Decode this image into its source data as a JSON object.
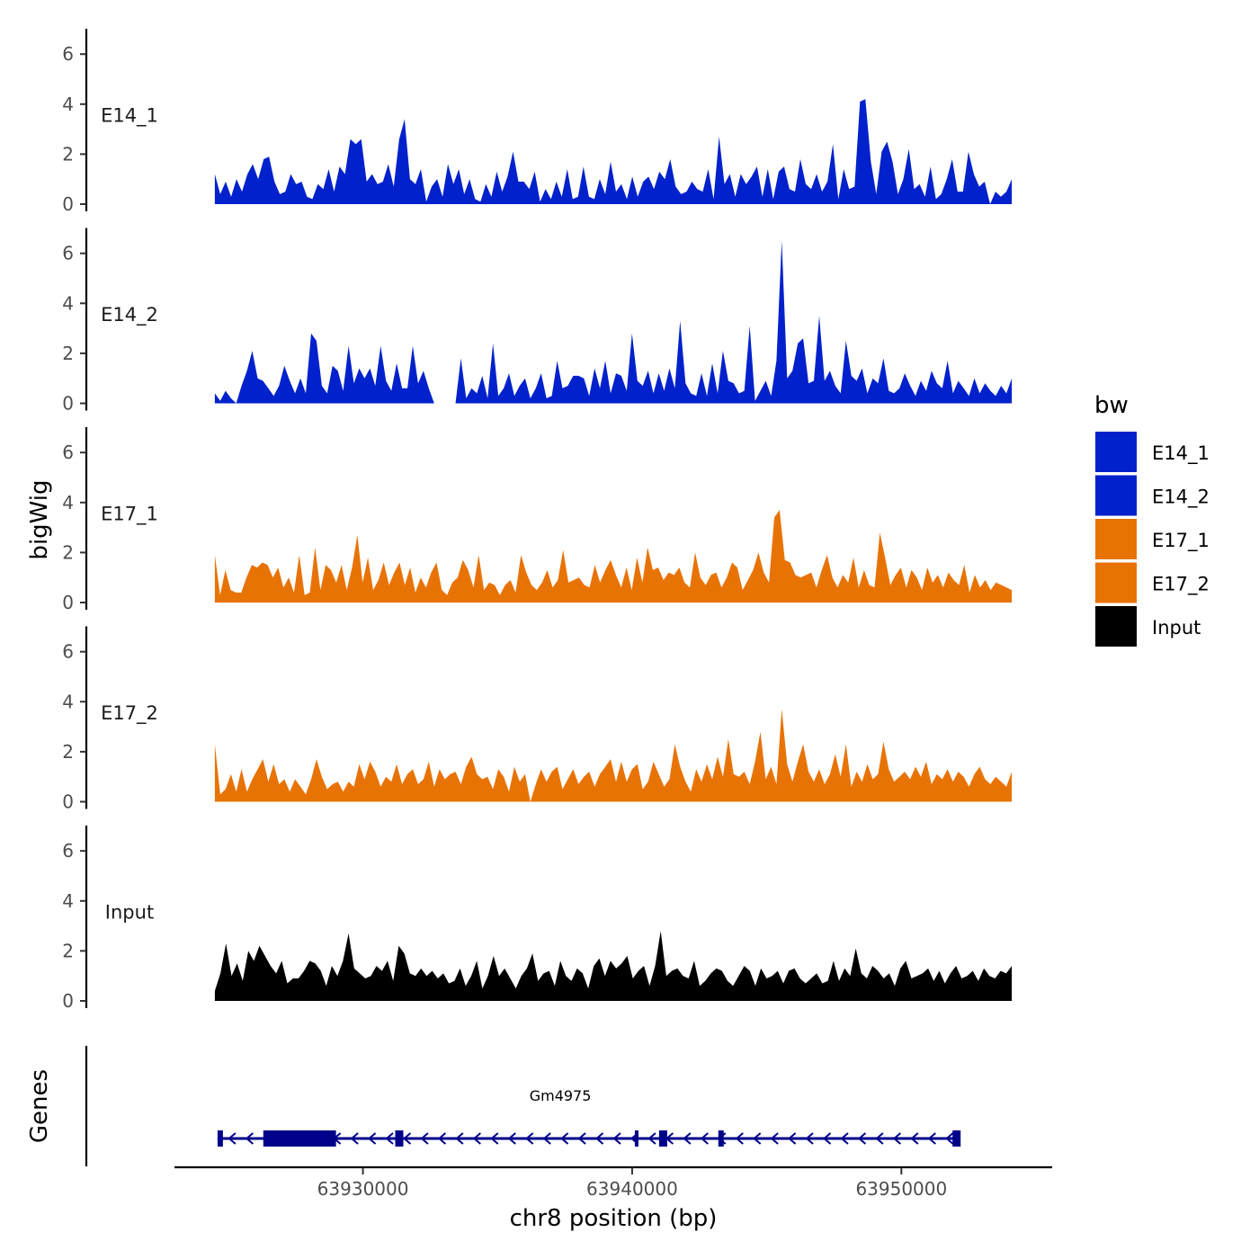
{
  "chart_data": {
    "type": "area",
    "title": "",
    "xlabel": "chr8 position (bp)",
    "ylabel": "bigWig",
    "genes_label": "Genes",
    "xlim": [
      63923000,
      63955600
    ],
    "ylim": [
      0,
      7
    ],
    "x_ticks": [
      63930000,
      63940000,
      63950000
    ],
    "x_tick_labels": [
      "63930000",
      "63940000",
      "63950000"
    ],
    "y_ticks": [
      0,
      2,
      4,
      6
    ],
    "y_tick_labels": [
      "0",
      "2",
      "4",
      "6"
    ],
    "region": [
      63924500,
      63954100
    ],
    "legend": {
      "title": "bw",
      "position": "right",
      "entries": [
        {
          "name": "E14_1",
          "color": "#0021CC"
        },
        {
          "name": "E14_2",
          "color": "#0021CC"
        },
        {
          "name": "E17_1",
          "color": "#E87305"
        },
        {
          "name": "E17_2",
          "color": "#E87305"
        },
        {
          "name": "Input",
          "color": "#000000"
        }
      ]
    },
    "series": [
      {
        "name": "E14_1",
        "color": "#0021CC",
        "values": [
          1.2,
          0.4,
          0.9,
          0.3,
          1.0,
          0.5,
          1.2,
          1.6,
          1.0,
          1.8,
          1.9,
          0.9,
          0.4,
          0.5,
          1.2,
          0.8,
          0.9,
          0.3,
          0.2,
          0.8,
          0.6,
          1.4,
          0.5,
          1.5,
          1.2,
          2.6,
          2.4,
          2.6,
          0.9,
          1.2,
          0.8,
          0.9,
          1.6,
          0.7,
          2.6,
          3.4,
          1.0,
          0.8,
          1.4,
          0.1,
          0.7,
          1.0,
          0.3,
          1.6,
          0.8,
          1.4,
          0.4,
          1.0,
          0.2,
          0.1,
          0.8,
          0.3,
          1.3,
          0.5,
          1.1,
          2.1,
          0.9,
          0.9,
          0.6,
          1.3,
          0.1,
          0.6,
          0.2,
          0.9,
          0.3,
          1.4,
          0.2,
          0.3,
          1.5,
          0.3,
          0.2,
          1.0,
          0.4,
          1.7,
          0.5,
          0.8,
          0.2,
          1.1,
          0.3,
          0.9,
          1.1,
          0.6,
          1.3,
          1.0,
          1.8,
          0.7,
          0.4,
          0.5,
          0.9,
          0.6,
          0.5,
          1.4,
          0.2,
          2.7,
          0.8,
          1.2,
          0.3,
          1.2,
          0.8,
          1.1,
          1.5,
          0.3,
          1.4,
          0.2,
          1.3,
          1.5,
          0.6,
          0.5,
          1.8,
          0.8,
          0.6,
          1.2,
          0.5,
          0.9,
          2.4,
          0.2,
          1.4,
          0.6,
          0.7,
          4.1,
          4.2,
          1.7,
          0.4,
          2.1,
          2.5,
          1.7,
          0.4,
          1.0,
          2.2,
          0.6,
          0.8,
          0.3,
          1.5,
          0.2,
          0.4,
          1.0,
          1.8,
          0.5,
          0.5,
          2.1,
          1.2,
          0.7,
          0.9,
          0.0,
          0.5,
          0.3,
          0.5,
          1.0
        ]
      },
      {
        "name": "E14_2",
        "color": "#0021CC",
        "values": [
          0.4,
          0.1,
          0.5,
          0.2,
          0.0,
          0.7,
          1.3,
          2.1,
          1.0,
          0.9,
          0.6,
          0.3,
          0.7,
          1.5,
          0.9,
          0.4,
          1.0,
          0.4,
          2.8,
          2.5,
          0.7,
          0.4,
          1.5,
          1.3,
          0.5,
          2.3,
          0.8,
          1.4,
          1.0,
          1.4,
          0.7,
          2.3,
          0.9,
          0.5,
          1.6,
          0.6,
          0.6,
          2.3,
          0.8,
          1.3,
          0.6,
          0.0,
          0.0,
          0.0,
          0.0,
          0.0,
          1.8,
          0.2,
          0.6,
          0.4,
          1.1,
          0.2,
          2.4,
          0.3,
          0.6,
          1.2,
          0.3,
          0.7,
          1.0,
          0.2,
          0.6,
          1.2,
          0.2,
          0.3,
          1.7,
          0.6,
          0.7,
          1.1,
          1.1,
          1.0,
          0.3,
          1.4,
          0.6,
          1.7,
          0.4,
          1.2,
          1.1,
          0.5,
          2.8,
          0.9,
          0.7,
          1.3,
          0.4,
          1.2,
          0.5,
          1.4,
          0.6,
          3.3,
          0.8,
          0.4,
          0.3,
          1.2,
          0.3,
          1.6,
          0.4,
          2.1,
          0.9,
          0.8,
          0.4,
          0.5,
          3.1,
          0.1,
          0.5,
          0.9,
          0.3,
          1.7,
          6.5,
          1.0,
          1.3,
          2.4,
          2.6,
          0.8,
          0.9,
          3.5,
          0.9,
          1.3,
          0.7,
          0.4,
          2.5,
          1.1,
          0.9,
          1.4,
          0.4,
          1.0,
          0.8,
          1.8,
          0.5,
          0.4,
          0.6,
          1.2,
          0.7,
          0.3,
          0.9,
          0.5,
          1.3,
          0.8,
          0.6,
          1.7,
          0.4,
          0.9,
          0.6,
          0.3,
          1.0,
          0.4,
          0.8,
          0.5,
          0.3,
          0.7,
          0.4,
          1.0
        ]
      },
      {
        "name": "E17_1",
        "color": "#E87305",
        "values": [
          1.9,
          0.3,
          1.3,
          0.5,
          0.4,
          0.4,
          1.0,
          1.5,
          1.4,
          1.6,
          1.5,
          1.0,
          1.4,
          0.6,
          1.0,
          0.4,
          1.9,
          0.3,
          0.4,
          2.2,
          0.5,
          1.5,
          1.3,
          0.8,
          1.5,
          0.5,
          1.4,
          2.7,
          0.8,
          1.8,
          0.5,
          0.9,
          1.6,
          0.7,
          1.2,
          1.6,
          0.7,
          1.4,
          0.4,
          1.0,
          0.6,
          1.2,
          1.6,
          0.5,
          0.3,
          0.8,
          1.0,
          1.7,
          1.3,
          0.6,
          1.9,
          0.5,
          0.8,
          0.7,
          0.3,
          0.7,
          0.9,
          0.4,
          1.9,
          1.2,
          0.7,
          0.5,
          0.8,
          1.3,
          0.6,
          0.9,
          2.1,
          0.8,
          0.9,
          1.0,
          0.7,
          0.6,
          1.5,
          0.8,
          1.3,
          1.7,
          1.1,
          0.6,
          1.4,
          0.5,
          1.8,
          0.8,
          2.2,
          1.3,
          1.4,
          0.9,
          1.2,
          1.1,
          1.4,
          0.8,
          0.6,
          2.0,
          1.0,
          0.7,
          1.1,
          1.2,
          0.6,
          1.0,
          1.6,
          1.4,
          0.5,
          0.9,
          1.3,
          2.0,
          1.2,
          0.8,
          3.4,
          3.7,
          1.7,
          1.6,
          1.1,
          1.0,
          1.1,
          1.2,
          0.6,
          1.3,
          1.9,
          1.0,
          0.6,
          1.1,
          0.8,
          1.8,
          0.6,
          1.3,
          0.7,
          0.6,
          2.8,
          1.8,
          0.7,
          1.1,
          1.4,
          0.6,
          1.3,
          1.0,
          0.5,
          1.4,
          0.8,
          1.1,
          0.6,
          1.2,
          0.9,
          0.7,
          1.5,
          0.4,
          1.1,
          0.6,
          0.9,
          0.5,
          0.8,
          0.7,
          0.6,
          0.5
        ]
      },
      {
        "name": "E17_2",
        "color": "#E87305",
        "values": [
          2.3,
          0.3,
          0.5,
          1.1,
          0.4,
          1.3,
          0.4,
          0.9,
          1.3,
          1.7,
          0.8,
          1.5,
          0.7,
          0.9,
          0.4,
          0.9,
          0.6,
          0.3,
          0.9,
          1.7,
          1.0,
          0.5,
          0.7,
          0.8,
          0.4,
          0.8,
          0.6,
          1.5,
          0.9,
          1.6,
          1.2,
          0.6,
          1.0,
          0.8,
          1.5,
          0.7,
          1.1,
          1.3,
          0.7,
          0.9,
          1.6,
          0.6,
          1.3,
          0.9,
          1.1,
          1.2,
          0.7,
          1.4,
          1.8,
          1.1,
          0.9,
          1.0,
          0.5,
          1.3,
          1.0,
          0.4,
          1.4,
          0.8,
          1.1,
          0.0,
          0.7,
          1.3,
          0.8,
          1.2,
          1.4,
          0.5,
          0.9,
          1.3,
          0.7,
          1.0,
          1.2,
          0.6,
          1.1,
          1.4,
          1.7,
          0.8,
          1.6,
          0.8,
          1.3,
          1.5,
          0.5,
          0.8,
          1.6,
          1.1,
          0.6,
          0.9,
          2.3,
          1.4,
          0.8,
          0.4,
          1.3,
          0.8,
          1.5,
          0.9,
          1.8,
          1.0,
          2.5,
          1.1,
          1.0,
          1.2,
          0.7,
          1.6,
          2.8,
          0.9,
          1.4,
          0.7,
          3.7,
          1.5,
          0.8,
          1.6,
          2.3,
          1.2,
          0.8,
          1.3,
          0.7,
          1.1,
          1.9,
          1.0,
          2.3,
          0.6,
          1.2,
          0.8,
          1.5,
          0.9,
          1.1,
          2.4,
          1.3,
          0.8,
          1.0,
          1.2,
          0.9,
          1.4,
          1.0,
          1.6,
          0.7,
          1.1,
          0.9,
          1.3,
          0.8,
          1.2,
          1.0,
          0.6,
          1.1,
          1.4,
          0.9,
          0.7,
          1.0,
          0.8,
          0.6,
          1.2
        ]
      },
      {
        "name": "Input",
        "color": "#000000",
        "values": [
          0.4,
          1.1,
          2.3,
          1.0,
          1.5,
          0.8,
          2.0,
          1.6,
          2.2,
          1.8,
          1.4,
          1.1,
          1.6,
          0.7,
          0.9,
          0.9,
          1.2,
          1.6,
          1.5,
          1.2,
          0.6,
          1.4,
          1.0,
          1.6,
          2.7,
          1.3,
          1.1,
          0.9,
          1.0,
          1.4,
          1.2,
          1.6,
          0.8,
          2.2,
          1.9,
          1.1,
          1.0,
          1.3,
          1.0,
          1.2,
          0.9,
          1.1,
          0.7,
          0.8,
          1.3,
          0.6,
          1.0,
          1.6,
          0.5,
          1.0,
          1.8,
          1.0,
          1.3,
          0.9,
          0.5,
          1.0,
          1.3,
          1.9,
          0.8,
          1.1,
          1.2,
          0.6,
          1.6,
          1.0,
          0.8,
          1.3,
          1.1,
          0.5,
          1.4,
          1.7,
          1.0,
          1.6,
          1.3,
          1.5,
          1.8,
          0.9,
          1.2,
          1.4,
          0.6,
          1.4,
          2.8,
          1.0,
          1.2,
          1.3,
          1.0,
          0.9,
          1.6,
          0.6,
          0.8,
          1.1,
          1.3,
          1.2,
          0.8,
          0.6,
          1.0,
          1.4,
          1.2,
          0.6,
          1.3,
          0.9,
          1.0,
          1.2,
          0.7,
          1.2,
          1.3,
          0.9,
          0.7,
          0.9,
          1.1,
          0.7,
          0.8,
          1.6,
          0.8,
          1.3,
          1.0,
          2.1,
          1.1,
          0.9,
          1.4,
          1.2,
          0.9,
          1.1,
          0.6,
          1.3,
          1.6,
          0.9,
          1.0,
          1.1,
          1.3,
          0.8,
          1.2,
          0.7,
          1.1,
          1.4,
          0.9,
          1.0,
          1.2,
          0.8,
          1.3,
          1.0,
          0.9,
          1.2,
          1.1,
          1.4
        ]
      }
    ],
    "gene_track": {
      "gene_name": "Gm4975",
      "color": "#00008B",
      "start": 63924600,
      "end": 63952000,
      "strand": "-",
      "exons": [
        [
          63924600,
          63924800
        ],
        [
          63926300,
          63929000
        ],
        [
          63931200,
          63931500
        ],
        [
          63940100,
          63940200
        ],
        [
          63941000,
          63941300
        ],
        [
          63943200,
          63943400
        ],
        [
          63951900,
          63952200
        ]
      ]
    }
  }
}
